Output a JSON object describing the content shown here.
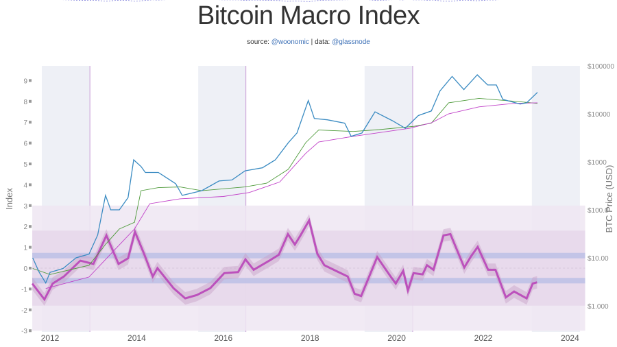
{
  "chart_data": {
    "type": "line",
    "title": "Bitcoin Macro Index",
    "subtitle": {
      "source_label": "source:",
      "source_handle": "@woonomic",
      "separator": "|",
      "data_label": "data:",
      "data_handle": "@glassnode"
    },
    "xlabel": "",
    "ylabel_left": "Index",
    "ylabel_right": "BTC Price (USD)",
    "x_ticks": [
      "2012",
      "2014",
      "2016",
      "2018",
      "2020",
      "2022",
      "2024"
    ],
    "x_tick_values": [
      2012,
      2014,
      2016,
      2018,
      2020,
      2022,
      2024
    ],
    "xlim": [
      2011.59,
      2024.35
    ],
    "y_left_ticks": [
      "9",
      "8",
      "7",
      "6",
      "5",
      "4",
      "3",
      "2",
      "1",
      "0",
      "-1",
      "-2",
      "-3"
    ],
    "y_left_tick_values": [
      9,
      8,
      7,
      6,
      5,
      4,
      3,
      2,
      1,
      0,
      -1,
      -2,
      -3
    ],
    "ylim_left": [
      -3,
      9.7
    ],
    "y_right_ticks": [
      "$100000",
      "$10000",
      "$1000",
      "$100.0",
      "$10.00",
      "$1.000"
    ],
    "y_right_tick_values": [
      100000,
      10000,
      1000,
      100,
      10,
      1
    ],
    "ylim_right_log": [
      0.5,
      100000
    ],
    "grid": false,
    "colors": {
      "price": "#3a8bc2",
      "ma_green": "#4e9a3a",
      "ma_magenta": "#c040c8",
      "index": "#b845b8",
      "index_band": "#c8a0c8",
      "cycle_shade": "#eef0f6",
      "halving": "#c79ad6",
      "outer_band": "#efe6f2",
      "inner_band": "#e6d6ea",
      "signal_band": "#bcc0e6"
    },
    "shaded_cycles": [
      [
        2011.81,
        2012.92
      ],
      [
        2015.42,
        2016.52
      ],
      [
        2019.26,
        2020.37
      ],
      [
        2023.12,
        2024.23
      ]
    ],
    "halvings": [
      2012.92,
      2016.52,
      2020.37
    ],
    "index_bands": {
      "outer": [
        -3,
        3
      ],
      "inner": [
        -1.8,
        1.8
      ],
      "signal_levels": [
        0.6,
        -0.6
      ]
    },
    "series": [
      {
        "name": "BTC Price",
        "axis": "right",
        "x": [
          2011.6,
          2011.75,
          2011.9,
          2012.0,
          2012.3,
          2012.6,
          2012.9,
          2013.1,
          2013.28,
          2013.4,
          2013.6,
          2013.8,
          2013.93,
          2014.1,
          2014.2,
          2014.5,
          2014.9,
          2015.05,
          2015.5,
          2015.9,
          2016.2,
          2016.5,
          2016.9,
          2017.2,
          2017.5,
          2017.7,
          2017.96,
          2018.1,
          2018.4,
          2018.8,
          2018.95,
          2019.2,
          2019.5,
          2019.9,
          2020.2,
          2020.5,
          2020.8,
          2021.0,
          2021.28,
          2021.55,
          2021.86,
          2022.1,
          2022.3,
          2022.45,
          2022.85,
          2023.0,
          2023.25
        ],
        "values": [
          10,
          5,
          3,
          5,
          6,
          10,
          12,
          30,
          200,
          100,
          100,
          180,
          1100,
          800,
          600,
          600,
          350,
          200,
          250,
          400,
          420,
          650,
          750,
          1100,
          2500,
          4000,
          19000,
          8000,
          7500,
          6400,
          3400,
          4000,
          11000,
          7200,
          5000,
          9200,
          11500,
          30000,
          60000,
          32000,
          65000,
          40000,
          40000,
          20000,
          16000,
          17000,
          28000
        ]
      },
      {
        "name": "Long-term MA (green)",
        "axis": "right",
        "x": [
          2011.6,
          2012.0,
          2012.9,
          2013.3,
          2013.6,
          2013.95,
          2014.1,
          2014.5,
          2015.0,
          2015.5,
          2016.5,
          2017.0,
          2017.5,
          2017.9,
          2018.2,
          2019.0,
          2019.6,
          2020.4,
          2020.8,
          2021.2,
          2021.9,
          2022.8,
          2023.25
        ],
        "values": [
          6,
          4.5,
          7,
          20,
          40,
          55,
          250,
          290,
          300,
          250,
          300,
          360,
          700,
          2500,
          4600,
          4300,
          4700,
          5500,
          6400,
          17000,
          21000,
          18000,
          16500
        ]
      },
      {
        "name": "Long-term MA (magenta)",
        "axis": "right",
        "x": [
          2011.9,
          2012.9,
          2013.5,
          2013.95,
          2014.3,
          2015.0,
          2016.0,
          2016.6,
          2017.3,
          2017.9,
          2018.2,
          2019.0,
          2020.3,
          2020.8,
          2021.2,
          2021.9,
          2022.7,
          2023.25
        ],
        "values": [
          2.3,
          4,
          15,
          40,
          134,
          170,
          190,
          230,
          380,
          1500,
          2600,
          3400,
          5000,
          6500,
          10000,
          14000,
          16500,
          17000
        ]
      },
      {
        "name": "Macro Index",
        "axis": "left",
        "x": [
          2011.59,
          2011.87,
          2012.06,
          2012.32,
          2012.7,
          2013.0,
          2013.3,
          2013.58,
          2013.8,
          2013.96,
          2014.17,
          2014.37,
          2014.48,
          2014.85,
          2015.12,
          2015.39,
          2015.7,
          2016.02,
          2016.34,
          2016.51,
          2016.7,
          2017.06,
          2017.28,
          2017.49,
          2017.65,
          2017.78,
          2017.98,
          2018.17,
          2018.33,
          2018.6,
          2018.87,
          2019.03,
          2019.18,
          2019.55,
          2019.86,
          2019.98,
          2020.15,
          2020.26,
          2020.39,
          2020.6,
          2020.7,
          2020.85,
          2021.08,
          2021.24,
          2021.56,
          2021.72,
          2021.87,
          2022.11,
          2022.28,
          2022.52,
          2022.71,
          2023.0,
          2023.14,
          2023.24
        ],
        "values": [
          -0.74,
          -1.5,
          -0.74,
          -0.4,
          0.36,
          0.2,
          1.57,
          0.2,
          0.47,
          1.74,
          0.69,
          -0.4,
          0,
          -0.96,
          -1.45,
          -1.29,
          -0.96,
          -0.24,
          -0.19,
          0.42,
          -0.08,
          0.36,
          0.64,
          1.63,
          1.13,
          1.57,
          2.29,
          0.69,
          0.14,
          -0.13,
          -0.4,
          -1.23,
          -1.34,
          0.53,
          -0.4,
          -0.74,
          -0.13,
          -1.07,
          -0.24,
          -0.3,
          0.14,
          -0.08,
          1.57,
          1.63,
          0.03,
          0.58,
          1.02,
          -0.08,
          -0.08,
          -1.4,
          -1.12,
          -1.45,
          -0.74,
          -0.68
        ]
      }
    ]
  }
}
